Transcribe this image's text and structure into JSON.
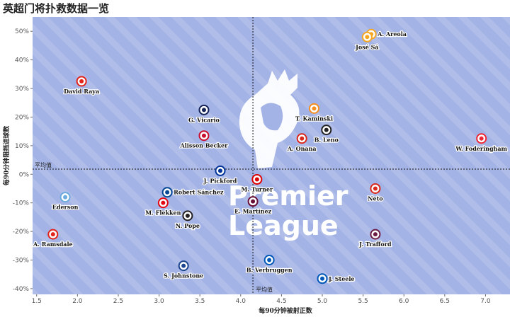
{
  "title": "英超门将扑救数据一览",
  "chart_data": {
    "type": "scatter",
    "xlabel": "每90分钟被射正数",
    "ylabel": "每90分钟阻挡进球数",
    "xlim": [
      1.45,
      7.3
    ],
    "ylim": [
      -42,
      55
    ],
    "xticks": [
      "1.5",
      "2.0",
      "2.5",
      "3.0",
      "3.5",
      "4.0",
      "4.5",
      "5.0",
      "5.5",
      "6.0",
      "6.5",
      "7.0"
    ],
    "yticks": [
      "-40%",
      "-30%",
      "-20%",
      "-10%",
      "0%",
      "10%",
      "20%",
      "30%",
      "40%",
      "50%"
    ],
    "avg_x": 4.15,
    "avg_y": 1.8,
    "avg_label": "平均值",
    "watermark": [
      "Premier",
      "League"
    ],
    "points": [
      {
        "name": "A. Areola",
        "x": 5.6,
        "y": 49,
        "label_pos": "right",
        "color": "#f5a623"
      },
      {
        "name": "José Sá",
        "x": 5.55,
        "y": 48,
        "label_pos": "below",
        "color": "#f5a623"
      },
      {
        "name": "David Raya",
        "x": 2.05,
        "y": 32.5,
        "label_pos": "below",
        "color": "#e2231a"
      },
      {
        "name": "G. Vicario",
        "x": 3.55,
        "y": 22.5,
        "label_pos": "below",
        "color": "#132257"
      },
      {
        "name": "T. Kaminski",
        "x": 4.9,
        "y": 23,
        "label_pos": "below",
        "color": "#f78f1e"
      },
      {
        "name": "B. Leno",
        "x": 5.05,
        "y": 15.5,
        "label_pos": "below",
        "color": "#222222"
      },
      {
        "name": "A. Onana",
        "x": 4.75,
        "y": 12.5,
        "label_pos": "below",
        "color": "#da291c"
      },
      {
        "name": "W. Foderingham",
        "x": 6.95,
        "y": 12.5,
        "label_pos": "below",
        "color": "#ee2737"
      },
      {
        "name": "Alisson Becker",
        "x": 3.55,
        "y": 13.5,
        "label_pos": "below",
        "color": "#c8102e"
      },
      {
        "name": "J. Pickford",
        "x": 3.75,
        "y": 1.2,
        "label_pos": "below",
        "color": "#003399"
      },
      {
        "name": "M. Turner",
        "x": 4.2,
        "y": -1.8,
        "label_pos": "below",
        "color": "#dd0000"
      },
      {
        "name": "Robert Sánchez",
        "x": 3.1,
        "y": -6.3,
        "label_pos": "right",
        "color": "#034694"
      },
      {
        "name": "Ederson",
        "x": 1.85,
        "y": -8,
        "label_pos": "below",
        "color": "#6cabdd"
      },
      {
        "name": "M. Flekken",
        "x": 3.05,
        "y": -10,
        "label_pos": "below",
        "color": "#e30613"
      },
      {
        "name": "E. Martínez",
        "x": 4.15,
        "y": -9.5,
        "label_pos": "below",
        "color": "#670e36"
      },
      {
        "name": "Neto",
        "x": 5.65,
        "y": -5,
        "label_pos": "below",
        "color": "#da291c"
      },
      {
        "name": "N. Pope",
        "x": 3.35,
        "y": -14.5,
        "label_pos": "below",
        "color": "#241f20"
      },
      {
        "name": "A. Ramsdale",
        "x": 1.7,
        "y": -21,
        "label_pos": "below",
        "color": "#e2231a"
      },
      {
        "name": "J. Trafford",
        "x": 5.65,
        "y": -21,
        "label_pos": "below",
        "color": "#6c1d45"
      },
      {
        "name": "B. Verbruggen",
        "x": 4.35,
        "y": -30,
        "label_pos": "below",
        "color": "#0057b8"
      },
      {
        "name": "S. Johnstone",
        "x": 3.3,
        "y": -32,
        "label_pos": "below",
        "color": "#1b458f"
      },
      {
        "name": "J. Steele",
        "x": 5,
        "y": -36.5,
        "label_pos": "right",
        "color": "#0057b8"
      }
    ]
  }
}
